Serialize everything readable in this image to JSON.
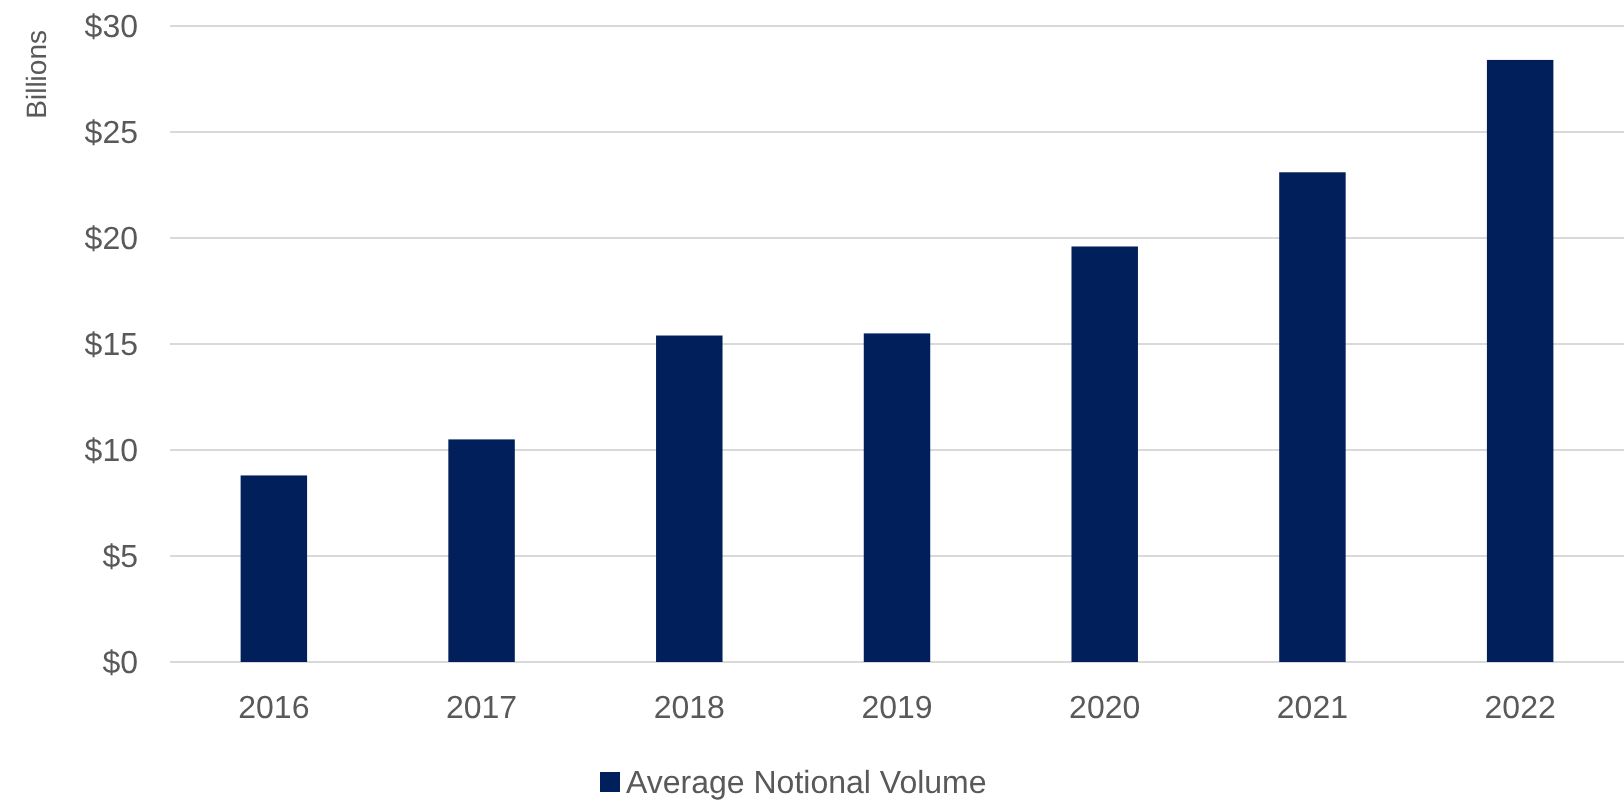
{
  "chart_data": {
    "type": "bar",
    "ylabel": "Billions",
    "categories": [
      "2016",
      "2017",
      "2018",
      "2019",
      "2020",
      "2021",
      "2022"
    ],
    "series": [
      {
        "name": "Average Notional Volume",
        "color": "#001f5b",
        "values": [
          8.8,
          10.5,
          15.4,
          15.5,
          19.6,
          23.1,
          28.4
        ]
      }
    ],
    "ylim": [
      0,
      30
    ],
    "yticks": [
      {
        "value": 0,
        "label": "$0"
      },
      {
        "value": 5,
        "label": "$5"
      },
      {
        "value": 10,
        "label": "$10"
      },
      {
        "value": 15,
        "label": "$15"
      },
      {
        "value": 20,
        "label": "$20"
      },
      {
        "value": 25,
        "label": "$25"
      },
      {
        "value": 30,
        "label": "$30"
      }
    ],
    "grid": "y",
    "legend": "bottom"
  }
}
